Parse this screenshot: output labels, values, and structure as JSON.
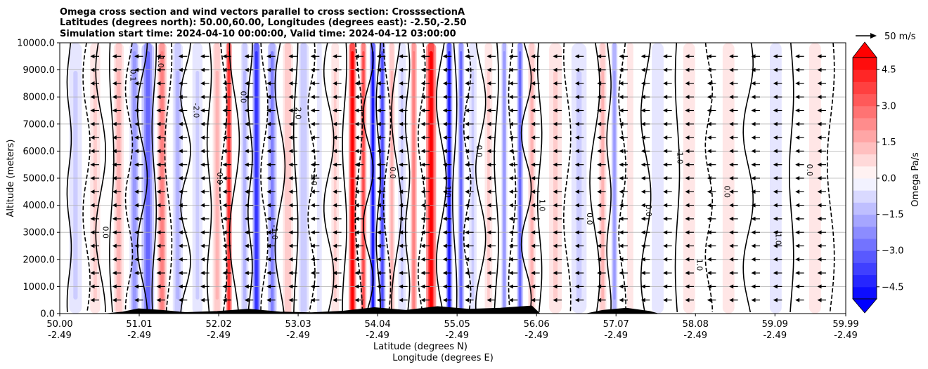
{
  "chart_data": {
    "type": "heatmap",
    "title_lines": [
      "Omega cross section and wind vectors parallel to cross section: CrosssectionA",
      "Latitudes (degrees north): 50.00,60.00, Longitudes (degrees east): -2.50,-2.50",
      "Simulation start time: 2024-04-10 00:00:00, Valid time: 2024-04-12 03:00:00"
    ],
    "xlabel": "Latitude (degrees N)",
    "xlabel2": "Longitude (degrees E)",
    "ylabel": "Altitude (meters)",
    "xlim": [
      50.0,
      59.99
    ],
    "ylim": [
      0,
      10000
    ],
    "x_ticks": [
      50.0,
      51.01,
      52.02,
      53.03,
      54.04,
      55.05,
      56.06,
      57.07,
      58.08,
      59.09,
      59.99
    ],
    "x_tick_labels": [
      "50.00",
      "51.01",
      "52.02",
      "53.03",
      "54.04",
      "55.05",
      "56.06",
      "57.07",
      "58.08",
      "59.09",
      "59.99"
    ],
    "x_tick_labels2": [
      "-2.49",
      "-2.49",
      "-2.49",
      "-2.49",
      "-2.49",
      "-2.49",
      "-2.49",
      "-2.49",
      "-2.49",
      "-2.49",
      "-2.49"
    ],
    "y_ticks": [
      0,
      1000,
      2000,
      3000,
      4000,
      5000,
      6000,
      7000,
      8000,
      9000,
      10000
    ],
    "y_tick_labels": [
      "0.0",
      "1000.0",
      "2000.0",
      "3000.0",
      "4000.0",
      "5000.0",
      "6000.0",
      "7000.0",
      "8000.0",
      "9000.0",
      "10000.0"
    ],
    "grid": "horizontal",
    "colorbar": {
      "label": "Omega Pa/s",
      "min": -5.0,
      "max": 5.0,
      "step": 0.5,
      "extend": "both",
      "ticks": [
        4.5,
        3.0,
        1.5,
        0.0,
        -1.5,
        -3.0,
        -4.5
      ],
      "tick_labels": [
        "4.5",
        "3.0",
        "1.5",
        "0.0",
        "−1.5",
        "−3.0",
        "−4.5"
      ],
      "colors": {
        "low": "#0000ff",
        "mid": "#ffffff",
        "high": "#ff0000"
      }
    },
    "quiver_key": {
      "label": "50 m/s",
      "speed": 50
    },
    "omega_bands": [
      {
        "lat": 50.2,
        "value": -1.0,
        "width": 0.1
      },
      {
        "lat": 50.45,
        "value": 0.8,
        "width": 0.08
      },
      {
        "lat": 50.75,
        "value": 1.3,
        "width": 0.08
      },
      {
        "lat": 50.95,
        "value": -2.0,
        "width": 0.08
      },
      {
        "lat": 51.12,
        "value": -3.0,
        "width": 0.1
      },
      {
        "lat": 51.3,
        "value": 2.5,
        "width": 0.07
      },
      {
        "lat": 51.5,
        "value": -1.5,
        "width": 0.08
      },
      {
        "lat": 51.75,
        "value": -0.8,
        "width": 0.08
      },
      {
        "lat": 52.0,
        "value": 1.5,
        "width": 0.07
      },
      {
        "lat": 52.15,
        "value": 4.0,
        "width": 0.05
      },
      {
        "lat": 52.35,
        "value": -1.5,
        "width": 0.06
      },
      {
        "lat": 52.5,
        "value": -4.0,
        "width": 0.06
      },
      {
        "lat": 52.7,
        "value": -2.5,
        "width": 0.07
      },
      {
        "lat": 52.9,
        "value": 1.2,
        "width": 0.08
      },
      {
        "lat": 53.1,
        "value": -1.2,
        "width": 0.08
      },
      {
        "lat": 53.3,
        "value": -0.6,
        "width": 0.06
      },
      {
        "lat": 53.5,
        "value": 1.0,
        "width": 0.06
      },
      {
        "lat": 53.72,
        "value": 5.0,
        "width": 0.06
      },
      {
        "lat": 53.86,
        "value": 3.5,
        "width": 0.05
      },
      {
        "lat": 53.98,
        "value": -4.5,
        "width": 0.05
      },
      {
        "lat": 54.1,
        "value": -3.5,
        "width": 0.05
      },
      {
        "lat": 54.22,
        "value": 1.5,
        "width": 0.05
      },
      {
        "lat": 54.35,
        "value": -1.0,
        "width": 0.06
      },
      {
        "lat": 54.5,
        "value": 2.5,
        "width": 0.05
      },
      {
        "lat": 54.72,
        "value": 5.0,
        "width": 0.08
      },
      {
        "lat": 54.95,
        "value": -4.5,
        "width": 0.05
      },
      {
        "lat": 55.1,
        "value": -3.0,
        "width": 0.05
      },
      {
        "lat": 55.25,
        "value": -1.0,
        "width": 0.06
      },
      {
        "lat": 55.45,
        "value": 1.0,
        "width": 0.06
      },
      {
        "lat": 55.65,
        "value": -2.0,
        "width": 0.05
      },
      {
        "lat": 55.85,
        "value": -3.0,
        "width": 0.05
      },
      {
        "lat": 56.0,
        "value": 1.5,
        "width": 0.06
      },
      {
        "lat": 56.3,
        "value": 0.8,
        "width": 0.1
      },
      {
        "lat": 56.6,
        "value": -0.8,
        "width": 0.12
      },
      {
        "lat": 56.9,
        "value": 1.5,
        "width": 0.06
      },
      {
        "lat": 57.05,
        "value": -1.8,
        "width": 0.05
      },
      {
        "lat": 57.25,
        "value": 0.6,
        "width": 0.08
      },
      {
        "lat": 57.6,
        "value": -0.7,
        "width": 0.15
      },
      {
        "lat": 58.0,
        "value": 0.7,
        "width": 0.15
      },
      {
        "lat": 58.5,
        "value": 0.5,
        "width": 0.15
      },
      {
        "lat": 59.1,
        "value": -0.6,
        "width": 0.15
      },
      {
        "lat": 59.6,
        "value": 0.5,
        "width": 0.15
      }
    ],
    "contour_line_latitudes": [
      50.12,
      50.34,
      50.52,
      50.66,
      50.88,
      51.05,
      51.2,
      51.38,
      51.6,
      51.9,
      52.08,
      52.22,
      52.42,
      52.6,
      52.8,
      53.0,
      53.2,
      53.42,
      53.62,
      53.8,
      53.92,
      54.05,
      54.16,
      54.28,
      54.42,
      54.6,
      54.85,
      55.02,
      55.18,
      55.35,
      55.55,
      55.75,
      55.93,
      56.1,
      56.45,
      56.8,
      56.98,
      57.15,
      57.45,
      57.85,
      58.25,
      58.75,
      59.3,
      59.8
    ],
    "contour_labels": [
      {
        "lat": 50.55,
        "alt": 3000,
        "text": "0.0"
      },
      {
        "lat": 50.9,
        "alt": 8800,
        "text": "0.1"
      },
      {
        "lat": 51.25,
        "alt": 9300,
        "text": "1.0"
      },
      {
        "lat": 51.7,
        "alt": 7500,
        "text": "-2.0"
      },
      {
        "lat": 52.0,
        "alt": 5000,
        "text": "0.0"
      },
      {
        "lat": 52.3,
        "alt": 8000,
        "text": "0.0"
      },
      {
        "lat": 52.7,
        "alt": 3000,
        "text": "-1.0"
      },
      {
        "lat": 53.0,
        "alt": 7400,
        "text": "2.0"
      },
      {
        "lat": 53.2,
        "alt": 5000,
        "text": "-1.0"
      },
      {
        "lat": 54.2,
        "alt": 5200,
        "text": "0.0"
      },
      {
        "lat": 54.9,
        "alt": 4500,
        "text": "1.0"
      },
      {
        "lat": 55.3,
        "alt": 6000,
        "text": "0.0"
      },
      {
        "lat": 56.1,
        "alt": 4000,
        "text": "1.0"
      },
      {
        "lat": 56.7,
        "alt": 3500,
        "text": "0.0"
      },
      {
        "lat": 57.45,
        "alt": 3800,
        "text": "0.0"
      },
      {
        "lat": 57.85,
        "alt": 5800,
        "text": "-1.0"
      },
      {
        "lat": 58.1,
        "alt": 1800,
        "text": "1.0"
      },
      {
        "lat": 58.45,
        "alt": 4500,
        "text": "0.0"
      },
      {
        "lat": 59.1,
        "alt": 2800,
        "text": "-1.0"
      },
      {
        "lat": 59.5,
        "alt": 5300,
        "text": "0.0"
      }
    ],
    "wind": {
      "u_m_s": -15,
      "altitudes": [
        500,
        1000,
        1500,
        2000,
        2500,
        3000,
        3500,
        4000,
        4500,
        5000,
        5500,
        6000,
        6500,
        7000,
        7500,
        8000,
        8500,
        9000,
        9500
      ]
    },
    "terrain": [
      {
        "lat": 50.0,
        "alt": 0
      },
      {
        "lat": 50.6,
        "alt": 0
      },
      {
        "lat": 50.8,
        "alt": 60
      },
      {
        "lat": 51.0,
        "alt": 180
      },
      {
        "lat": 51.3,
        "alt": 120
      },
      {
        "lat": 51.6,
        "alt": 40
      },
      {
        "lat": 52.0,
        "alt": 80
      },
      {
        "lat": 52.4,
        "alt": 160
      },
      {
        "lat": 52.8,
        "alt": 60
      },
      {
        "lat": 53.2,
        "alt": 30
      },
      {
        "lat": 53.6,
        "alt": 90
      },
      {
        "lat": 54.0,
        "alt": 220
      },
      {
        "lat": 54.4,
        "alt": 120
      },
      {
        "lat": 54.8,
        "alt": 260
      },
      {
        "lat": 55.2,
        "alt": 160
      },
      {
        "lat": 55.6,
        "alt": 200
      },
      {
        "lat": 56.0,
        "alt": 280
      },
      {
        "lat": 56.1,
        "alt": 0
      },
      {
        "lat": 56.7,
        "alt": 0
      },
      {
        "lat": 56.9,
        "alt": 120
      },
      {
        "lat": 57.2,
        "alt": 200
      },
      {
        "lat": 57.5,
        "alt": 80
      },
      {
        "lat": 57.6,
        "alt": 0
      },
      {
        "lat": 59.99,
        "alt": 0
      }
    ]
  }
}
